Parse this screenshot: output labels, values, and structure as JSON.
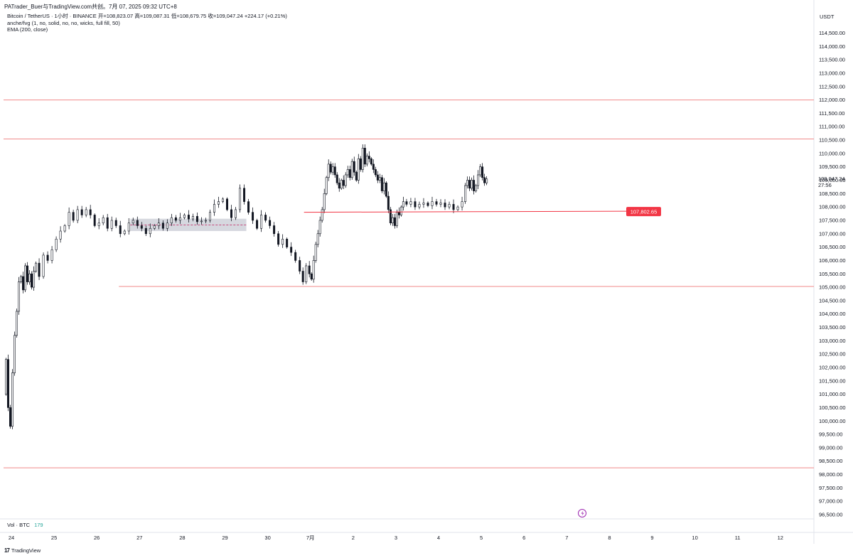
{
  "header": {
    "title": "PATrader_Buer与TradingView.com共创。7月 07, 2025 09:32 UTC+8"
  },
  "legend": {
    "symbol_line": "Bitcoin / TetherUS · 1小时 · BINANCE  开=108,823.07  高=109,087.31  低=108,679.75  收=109,047.24  +224.17 (+0.21%)",
    "indicator_1": "anche/fvg (1, no, solid, no, no, wicks, full fill, 50)",
    "indicator_2": "EMA (200, close)"
  },
  "currency_label": "USDT",
  "current_price": {
    "value": "109,047.24",
    "countdown": "27:56"
  },
  "marked_price_label": "107,802.65",
  "volume": {
    "label": "Vol · BTC",
    "value": "179"
  },
  "footer": {
    "brand": "TradingView",
    "logo": "17"
  },
  "colors": {
    "resistance": "#f08a8a",
    "candle": "#131722",
    "label_bg": "#f23645",
    "fvg_zone": "#d1d4dc",
    "fvg_mid": "#c2185b"
  },
  "chart_data": {
    "type": "candlestick",
    "y_ticks": [
      "114,500.00",
      "114,000.00",
      "113,500.00",
      "113,000.00",
      "112,500.00",
      "112,000.00",
      "111,500.00",
      "111,000.00",
      "110,500.00",
      "110,000.00",
      "109,500.00",
      "109,000.00",
      "108,500.00",
      "108,000.00",
      "107,500.00",
      "107,000.00",
      "106,500.00",
      "106,000.00",
      "105,500.00",
      "105,000.00",
      "104,500.00",
      "104,000.00",
      "103,500.00",
      "103,000.00",
      "102,500.00",
      "102,000.00",
      "101,500.00",
      "101,000.00",
      "100,500.00",
      "100,000.00",
      "99,500.00",
      "99,000.00",
      "98,500.00",
      "98,000.00",
      "97,500.00",
      "97,000.00",
      "96,500.00"
    ],
    "x_ticks": [
      "24",
      "25",
      "26",
      "27",
      "28",
      "29",
      "30",
      "7月",
      "2",
      "3",
      "4",
      "5",
      "6",
      "7",
      "8",
      "9",
      "10",
      "11",
      "12"
    ],
    "ylim": [
      96500,
      114500
    ],
    "horizontal_lines": [
      112000,
      110540,
      98250
    ],
    "support_ray": {
      "start_day": 2.35,
      "price": 105030
    },
    "marked_ray": {
      "start_day": 6.75,
      "price": 107802.65
    },
    "fvg_zone": {
      "start_day": 2.85,
      "end_day": 5.4,
      "low": 107100,
      "high": 107560,
      "mid": 107330
    },
    "candles_hourly_path": [
      [
        -0.15,
        101000
      ],
      [
        -0.1,
        102300
      ],
      [
        -0.05,
        100500
      ],
      [
        0.0,
        99800
      ],
      [
        0.05,
        101800
      ],
      [
        0.1,
        103200
      ],
      [
        0.15,
        104100
      ],
      [
        0.2,
        105200
      ],
      [
        0.25,
        105400
      ],
      [
        0.3,
        104900
      ],
      [
        0.35,
        105800
      ],
      [
        0.4,
        105200
      ],
      [
        0.45,
        105500
      ],
      [
        0.5,
        105000
      ],
      [
        0.55,
        105600
      ],
      [
        0.6,
        105900
      ],
      [
        0.7,
        105400
      ],
      [
        0.8,
        106200
      ],
      [
        0.9,
        106000
      ],
      [
        1.0,
        106400
      ],
      [
        1.1,
        106800
      ],
      [
        1.2,
        107100
      ],
      [
        1.3,
        107300
      ],
      [
        1.4,
        107800
      ],
      [
        1.5,
        107500
      ],
      [
        1.6,
        107900
      ],
      [
        1.7,
        107700
      ],
      [
        1.8,
        107900
      ],
      [
        1.9,
        107700
      ],
      [
        2.0,
        107300
      ],
      [
        2.1,
        107400
      ],
      [
        2.2,
        107600
      ],
      [
        2.3,
        107200
      ],
      [
        2.4,
        107500
      ],
      [
        2.5,
        107300
      ],
      [
        2.6,
        107000
      ],
      [
        2.7,
        107100
      ],
      [
        2.8,
        107400
      ],
      [
        2.9,
        107500
      ],
      [
        3.0,
        107300
      ],
      [
        3.1,
        107200
      ],
      [
        3.2,
        107000
      ],
      [
        3.3,
        107200
      ],
      [
        3.4,
        107300
      ],
      [
        3.5,
        107400
      ],
      [
        3.6,
        107200
      ],
      [
        3.7,
        107400
      ],
      [
        3.8,
        107600
      ],
      [
        3.9,
        107500
      ],
      [
        4.0,
        107600
      ],
      [
        4.1,
        107700
      ],
      [
        4.2,
        107550
      ],
      [
        4.3,
        107650
      ],
      [
        4.4,
        107450
      ],
      [
        4.6,
        107500
      ],
      [
        4.8,
        108100
      ],
      [
        5.0,
        108300
      ],
      [
        5.1,
        107900
      ],
      [
        5.2,
        107600
      ],
      [
        5.3,
        107900
      ],
      [
        5.4,
        108700
      ],
      [
        5.5,
        108200
      ],
      [
        5.6,
        107800
      ],
      [
        5.7,
        107500
      ],
      [
        5.8,
        107200
      ],
      [
        5.9,
        107700
      ],
      [
        6.0,
        107500
      ],
      [
        6.1,
        107300
      ],
      [
        6.2,
        107000
      ],
      [
        6.3,
        106600
      ],
      [
        6.4,
        106800
      ],
      [
        6.5,
        106500
      ],
      [
        6.6,
        106300
      ],
      [
        6.7,
        106000
      ],
      [
        6.8,
        105600
      ],
      [
        6.85,
        105200
      ],
      [
        6.95,
        105800
      ],
      [
        7.0,
        105500
      ],
      [
        7.05,
        105300
      ],
      [
        7.1,
        106000
      ],
      [
        7.15,
        106600
      ],
      [
        7.2,
        107000
      ],
      [
        7.25,
        107500
      ],
      [
        7.3,
        107900
      ],
      [
        7.35,
        108500
      ],
      [
        7.4,
        109100
      ],
      [
        7.45,
        109600
      ],
      [
        7.5,
        109300
      ],
      [
        7.55,
        109500
      ],
      [
        7.6,
        109200
      ],
      [
        7.65,
        108900
      ],
      [
        7.7,
        108700
      ],
      [
        7.75,
        109000
      ],
      [
        7.8,
        108800
      ],
      [
        7.85,
        109200
      ],
      [
        7.9,
        109400
      ],
      [
        7.95,
        109100
      ],
      [
        8.0,
        109700
      ],
      [
        8.05,
        109300
      ],
      [
        8.1,
        109000
      ],
      [
        8.15,
        109800
      ],
      [
        8.2,
        109400
      ],
      [
        8.25,
        110200
      ],
      [
        8.3,
        109600
      ],
      [
        8.35,
        109900
      ],
      [
        8.4,
        109800
      ],
      [
        8.45,
        109600
      ],
      [
        8.5,
        109400
      ],
      [
        8.55,
        109200
      ],
      [
        8.6,
        109000
      ],
      [
        8.65,
        109100
      ],
      [
        8.7,
        108600
      ],
      [
        8.75,
        108900
      ],
      [
        8.8,
        108400
      ],
      [
        8.85,
        107900
      ],
      [
        8.9,
        107400
      ],
      [
        8.95,
        107600
      ],
      [
        9.0,
        107300
      ],
      [
        9.05,
        107800
      ],
      [
        9.1,
        107700
      ],
      [
        9.15,
        108000
      ],
      [
        9.2,
        108200
      ],
      [
        9.3,
        108100
      ],
      [
        9.4,
        108200
      ],
      [
        9.5,
        108000
      ],
      [
        9.6,
        108100
      ],
      [
        9.7,
        108150
      ],
      [
        9.8,
        108050
      ],
      [
        9.9,
        108200
      ],
      [
        10.0,
        108100
      ],
      [
        10.1,
        108150
      ],
      [
        10.2,
        108000
      ],
      [
        10.3,
        108100
      ],
      [
        10.4,
        107900
      ],
      [
        10.5,
        108000
      ],
      [
        10.6,
        108200
      ],
      [
        10.65,
        108800
      ],
      [
        10.7,
        109000
      ],
      [
        10.75,
        108700
      ],
      [
        10.8,
        109000
      ],
      [
        10.85,
        108600
      ],
      [
        10.9,
        108800
      ],
      [
        10.95,
        109200
      ],
      [
        11.0,
        109500
      ],
      [
        11.05,
        109100
      ],
      [
        11.1,
        108900
      ],
      [
        11.15,
        109047
      ]
    ]
  }
}
